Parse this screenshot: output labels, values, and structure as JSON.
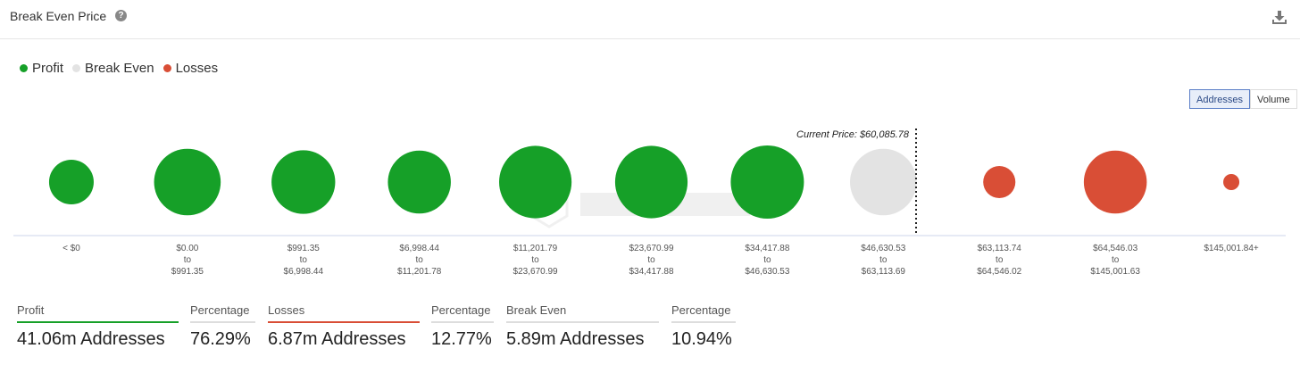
{
  "header": {
    "title": "Break Even Price",
    "help_icon": "question-circle-icon",
    "download_icon": "download-icon"
  },
  "legend": [
    {
      "label": "Profit",
      "color": "#16a028"
    },
    {
      "label": "Break Even",
      "color": "#e3e3e3"
    },
    {
      "label": "Losses",
      "color": "#d94e36"
    }
  ],
  "toggle": {
    "options": [
      "Addresses",
      "Volume"
    ],
    "selected": "Addresses"
  },
  "chart_data": {
    "type": "bubble",
    "current_price_label": "Current Price: $60,085.78",
    "categories": [
      {
        "label": [
          "< $0"
        ],
        "status": "profit",
        "relative_size": 0.61
      },
      {
        "label": [
          "$0.00",
          "to",
          "$991.35"
        ],
        "status": "profit",
        "relative_size": 0.91
      },
      {
        "label": [
          "$991.35",
          "to",
          "$6,998.44"
        ],
        "status": "profit",
        "relative_size": 0.87
      },
      {
        "label": [
          "$6,998.44",
          "to",
          "$11,201.78"
        ],
        "status": "profit",
        "relative_size": 0.86
      },
      {
        "label": [
          "$11,201.79",
          "to",
          "$23,670.99"
        ],
        "status": "profit",
        "relative_size": 0.99
      },
      {
        "label": [
          "$23,670.99",
          "to",
          "$34,417.88"
        ],
        "status": "profit",
        "relative_size": 0.99
      },
      {
        "label": [
          "$34,417.88",
          "to",
          "$46,630.53"
        ],
        "status": "profit",
        "relative_size": 1.0
      },
      {
        "label": [
          "$46,630.53",
          "to",
          "$63,113.69"
        ],
        "status": "break_even",
        "relative_size": 0.91
      },
      {
        "label": [
          "$63,113.74",
          "to",
          "$64,546.02"
        ],
        "status": "losses",
        "relative_size": 0.44
      },
      {
        "label": [
          "$64,546.03",
          "to",
          "$145,001.63"
        ],
        "status": "losses",
        "relative_size": 0.86
      },
      {
        "label": [
          "$145,001.84+"
        ],
        "status": "losses",
        "relative_size": 0.22
      }
    ]
  },
  "stats": [
    {
      "label": "Profit",
      "value": "41.06m Addresses",
      "line_color": "#16a028"
    },
    {
      "label": "Percentage",
      "value": "76.29%",
      "line_color": "#dddddd"
    },
    {
      "label": "Losses",
      "value": "6.87m Addresses",
      "line_color": "#d94e36"
    },
    {
      "label": "Percentage",
      "value": "12.77%",
      "line_color": "#dddddd"
    },
    {
      "label": "Break Even",
      "value": "5.89m Addresses",
      "line_color": "#dddddd"
    },
    {
      "label": "Percentage",
      "value": "10.94%",
      "line_color": "#dddddd"
    }
  ]
}
